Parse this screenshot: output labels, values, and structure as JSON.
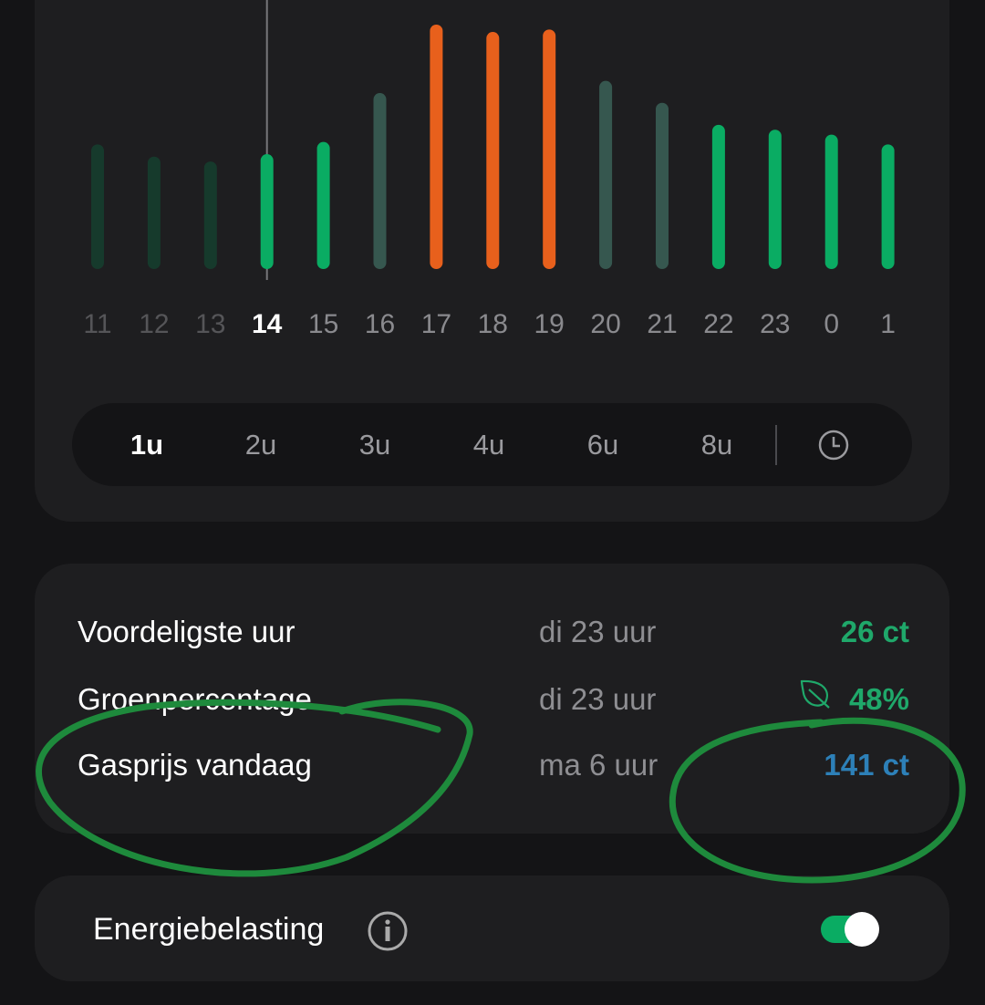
{
  "chart_data": {
    "type": "bar",
    "categories": [
      "11",
      "12",
      "13",
      "14",
      "15",
      "16",
      "17",
      "18",
      "19",
      "20",
      "21",
      "22",
      "23",
      "0",
      "1"
    ],
    "values": [
      0.51,
      0.46,
      0.44,
      0.47,
      0.52,
      0.72,
      1.0,
      0.97,
      0.98,
      0.77,
      0.68,
      0.59,
      0.57,
      0.55,
      0.51
    ],
    "current_hour": "14",
    "bar_states": [
      "past",
      "past",
      "past",
      "current",
      "cheap",
      "mid",
      "expensive",
      "expensive",
      "expensive",
      "mid",
      "mid",
      "cheap",
      "cheap",
      "cheap",
      "cheap"
    ],
    "colors": {
      "past": "#163a2c",
      "current": "#0aac63",
      "cheap": "#0aac63",
      "mid": "#36574f",
      "expensive": "#e8601c"
    }
  },
  "duration_selector": {
    "options": [
      "1u",
      "2u",
      "3u",
      "4u",
      "6u",
      "8u"
    ],
    "selected": "1u",
    "extra_icon": "clock-icon"
  },
  "summary": {
    "rows": [
      {
        "label": "Voordeligste uur",
        "when": "di 23 uur",
        "value": "26 ct",
        "color": "#1fa86a"
      },
      {
        "label": "Groenpercentage",
        "when": "di 23 uur",
        "value": "48%",
        "color": "#1fa86a",
        "icon": "leaf-icon"
      },
      {
        "label": "Gasprijs vandaag",
        "when": "ma 6 uur",
        "value": "141 ct",
        "color": "#2d80b8"
      }
    ]
  },
  "energy_tax": {
    "label": "Energiebelasting",
    "icon": "info-icon",
    "enabled": true
  },
  "annotation_color": "#1e8a3c"
}
